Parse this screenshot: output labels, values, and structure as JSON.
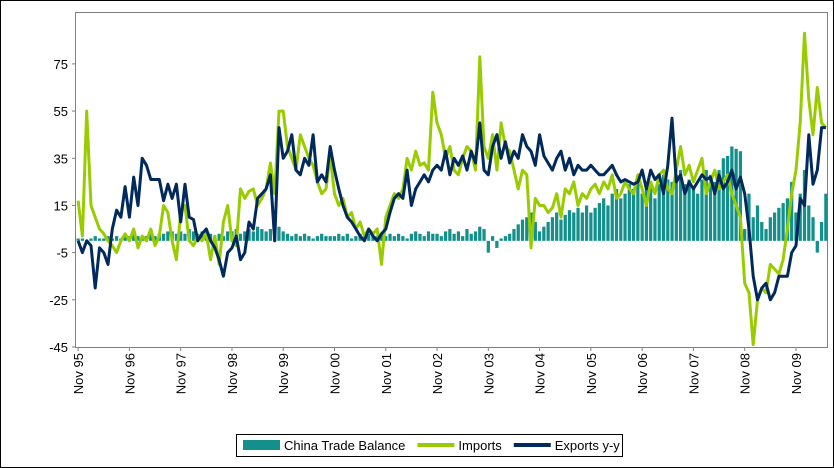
{
  "chart_data": {
    "type": "bar_line",
    "categories": [
      "Nov 95",
      null,
      null,
      null,
      null,
      null,
      null,
      null,
      null,
      null,
      null,
      null,
      "Nov 96",
      null,
      null,
      null,
      null,
      null,
      null,
      null,
      null,
      null,
      null,
      null,
      "Nov 97",
      null,
      null,
      null,
      null,
      null,
      null,
      null,
      null,
      null,
      null,
      null,
      "Nov 98",
      null,
      null,
      null,
      null,
      null,
      null,
      null,
      null,
      null,
      null,
      null,
      "Nov 99",
      null,
      null,
      null,
      null,
      null,
      null,
      null,
      null,
      null,
      null,
      null,
      "Nov 00",
      null,
      null,
      null,
      null,
      null,
      null,
      null,
      null,
      null,
      null,
      null,
      "Nov 01",
      null,
      null,
      null,
      null,
      null,
      null,
      null,
      null,
      null,
      null,
      null,
      "Nov 02",
      null,
      null,
      null,
      null,
      null,
      null,
      null,
      null,
      null,
      null,
      null,
      "Nov 03",
      null,
      null,
      null,
      null,
      null,
      null,
      null,
      null,
      null,
      null,
      null,
      "Nov 04",
      null,
      null,
      null,
      null,
      null,
      null,
      null,
      null,
      null,
      null,
      null,
      "Nov 05",
      null,
      null,
      null,
      null,
      null,
      null,
      null,
      null,
      null,
      null,
      null,
      "Nov 06",
      null,
      null,
      null,
      null,
      null,
      null,
      null,
      null,
      null,
      null,
      null,
      "Nov 07",
      null,
      null,
      null,
      null,
      null,
      null,
      null,
      null,
      null,
      null,
      null,
      "Nov 08",
      null,
      null,
      null,
      null,
      null,
      null,
      null,
      null,
      null,
      null,
      null,
      "Nov 09",
      null,
      null,
      null,
      null,
      null,
      null,
      null
    ],
    "series": [
      {
        "name": "China Trade Balance",
        "kind": "bar",
        "color": "#13908b",
        "values": [
          1,
          1,
          0,
          1,
          2,
          1,
          1,
          2,
          1,
          2,
          1,
          2,
          2,
          3,
          2,
          1,
          2,
          3,
          2,
          3,
          3,
          4,
          4,
          3,
          4,
          3,
          5,
          4,
          3,
          4,
          4,
          3,
          2,
          3,
          2,
          4,
          4,
          5,
          3,
          4,
          5,
          4,
          6,
          5,
          4,
          5,
          3,
          6,
          4,
          3,
          2,
          3,
          2,
          3,
          2,
          1,
          2,
          3,
          2,
          2,
          2,
          3,
          2,
          3,
          1,
          2,
          3,
          2,
          3,
          2,
          2,
          3,
          2,
          3,
          2,
          3,
          2,
          1,
          3,
          4,
          3,
          2,
          4,
          3,
          3,
          2,
          4,
          5,
          3,
          4,
          2,
          5,
          3,
          4,
          6,
          5,
          -5,
          2,
          -3,
          1,
          2,
          3,
          5,
          7,
          9,
          10,
          12,
          8,
          4,
          6,
          8,
          10,
          12,
          9,
          11,
          13,
          12,
          14,
          12,
          15,
          12,
          14,
          16,
          18,
          15,
          20,
          22,
          18,
          20,
          24,
          22,
          26,
          20,
          22,
          25,
          18,
          24,
          28,
          26,
          25,
          28,
          30,
          24,
          26,
          22,
          20,
          26,
          30,
          28,
          25,
          30,
          35,
          36,
          40,
          39,
          38,
          5,
          20,
          10,
          15,
          8,
          5,
          10,
          12,
          14,
          16,
          18,
          25,
          12,
          20,
          30,
          15,
          10,
          -5,
          8,
          20
        ]
      },
      {
        "name": "Imports",
        "kind": "line",
        "color": "#99cc00",
        "values": [
          17,
          2,
          55,
          15,
          10,
          5,
          3,
          0,
          -2,
          -5,
          0,
          3,
          0,
          5,
          -3,
          2,
          0,
          5,
          -2,
          2,
          15,
          12,
          0,
          -8,
          12,
          15,
          0,
          -2,
          2,
          0,
          3,
          -8,
          2,
          -10,
          8,
          15,
          0,
          -2,
          22,
          18,
          21,
          22,
          15,
          18,
          22,
          33,
          20,
          55,
          55,
          40,
          35,
          30,
          45,
          40,
          35,
          32,
          25,
          20,
          22,
          36,
          20,
          15,
          18,
          10,
          12,
          5,
          8,
          2,
          5,
          3,
          5,
          -10,
          10,
          15,
          20,
          18,
          22,
          35,
          30,
          38,
          32,
          33,
          30,
          63,
          50,
          45,
          35,
          40,
          30,
          28,
          35,
          40,
          38,
          30,
          78,
          40,
          35,
          45,
          30,
          50,
          40,
          38,
          30,
          22,
          30,
          28,
          -3,
          18,
          15,
          15,
          12,
          14,
          20,
          10,
          22,
          20,
          25,
          15,
          20,
          18,
          22,
          24,
          20,
          25,
          22,
          28,
          18,
          20,
          25,
          22,
          20,
          28,
          22,
          15,
          25,
          20,
          28,
          30,
          22,
          20,
          30,
          40,
          28,
          32,
          25,
          30,
          35,
          20,
          25,
          30,
          22,
          25,
          28,
          20,
          15,
          10,
          -18,
          -22,
          -44,
          -25,
          -20,
          -22,
          -10,
          -12,
          -14,
          -8,
          5,
          20,
          30,
          50,
          88,
          60,
          45,
          65,
          50,
          48
        ]
      },
      {
        "name": "Exports y-y",
        "kind": "line",
        "color": "#002a5c",
        "values": [
          0,
          -5,
          0,
          -2,
          -20,
          -3,
          -5,
          -10,
          5,
          13,
          10,
          23,
          10,
          27,
          15,
          35,
          32,
          26,
          26,
          26,
          17,
          24,
          18,
          24,
          8,
          24,
          10,
          9,
          0,
          3,
          5,
          0,
          -3,
          -8,
          -15,
          -5,
          -3,
          2,
          -8,
          -5,
          8,
          5,
          18,
          20,
          22,
          28,
          0,
          48,
          35,
          38,
          45,
          30,
          28,
          35,
          32,
          45,
          25,
          28,
          25,
          40,
          30,
          22,
          15,
          10,
          8,
          5,
          2,
          0,
          5,
          2,
          0,
          3,
          5,
          12,
          18,
          20,
          18,
          30,
          15,
          22,
          25,
          28,
          25,
          30,
          32,
          30,
          38,
          28,
          35,
          32,
          36,
          30,
          38,
          33,
          50,
          30,
          28,
          40,
          45,
          35,
          42,
          33,
          38,
          35,
          45,
          40,
          38,
          32,
          45,
          36,
          33,
          30,
          35,
          38,
          30,
          35,
          28,
          32,
          30,
          30,
          32,
          30,
          28,
          28,
          30,
          32,
          28,
          25,
          26,
          25,
          24,
          25,
          30,
          22,
          30,
          26,
          28,
          20,
          32,
          52,
          25,
          28,
          20,
          25,
          22,
          25,
          28,
          26,
          27,
          20,
          28,
          22,
          25,
          30,
          22,
          27,
          20,
          5,
          -15,
          -25,
          -20,
          -18,
          -25,
          -22,
          -15,
          -15,
          -15,
          -5,
          -2,
          18,
          15,
          45,
          24,
          30,
          48,
          48
        ]
      }
    ],
    "ylim": [
      -45,
      97
    ],
    "yticks": [
      75,
      55,
      35,
      15,
      -5,
      -25,
      -45
    ],
    "grid": false,
    "legend": "bottom"
  }
}
